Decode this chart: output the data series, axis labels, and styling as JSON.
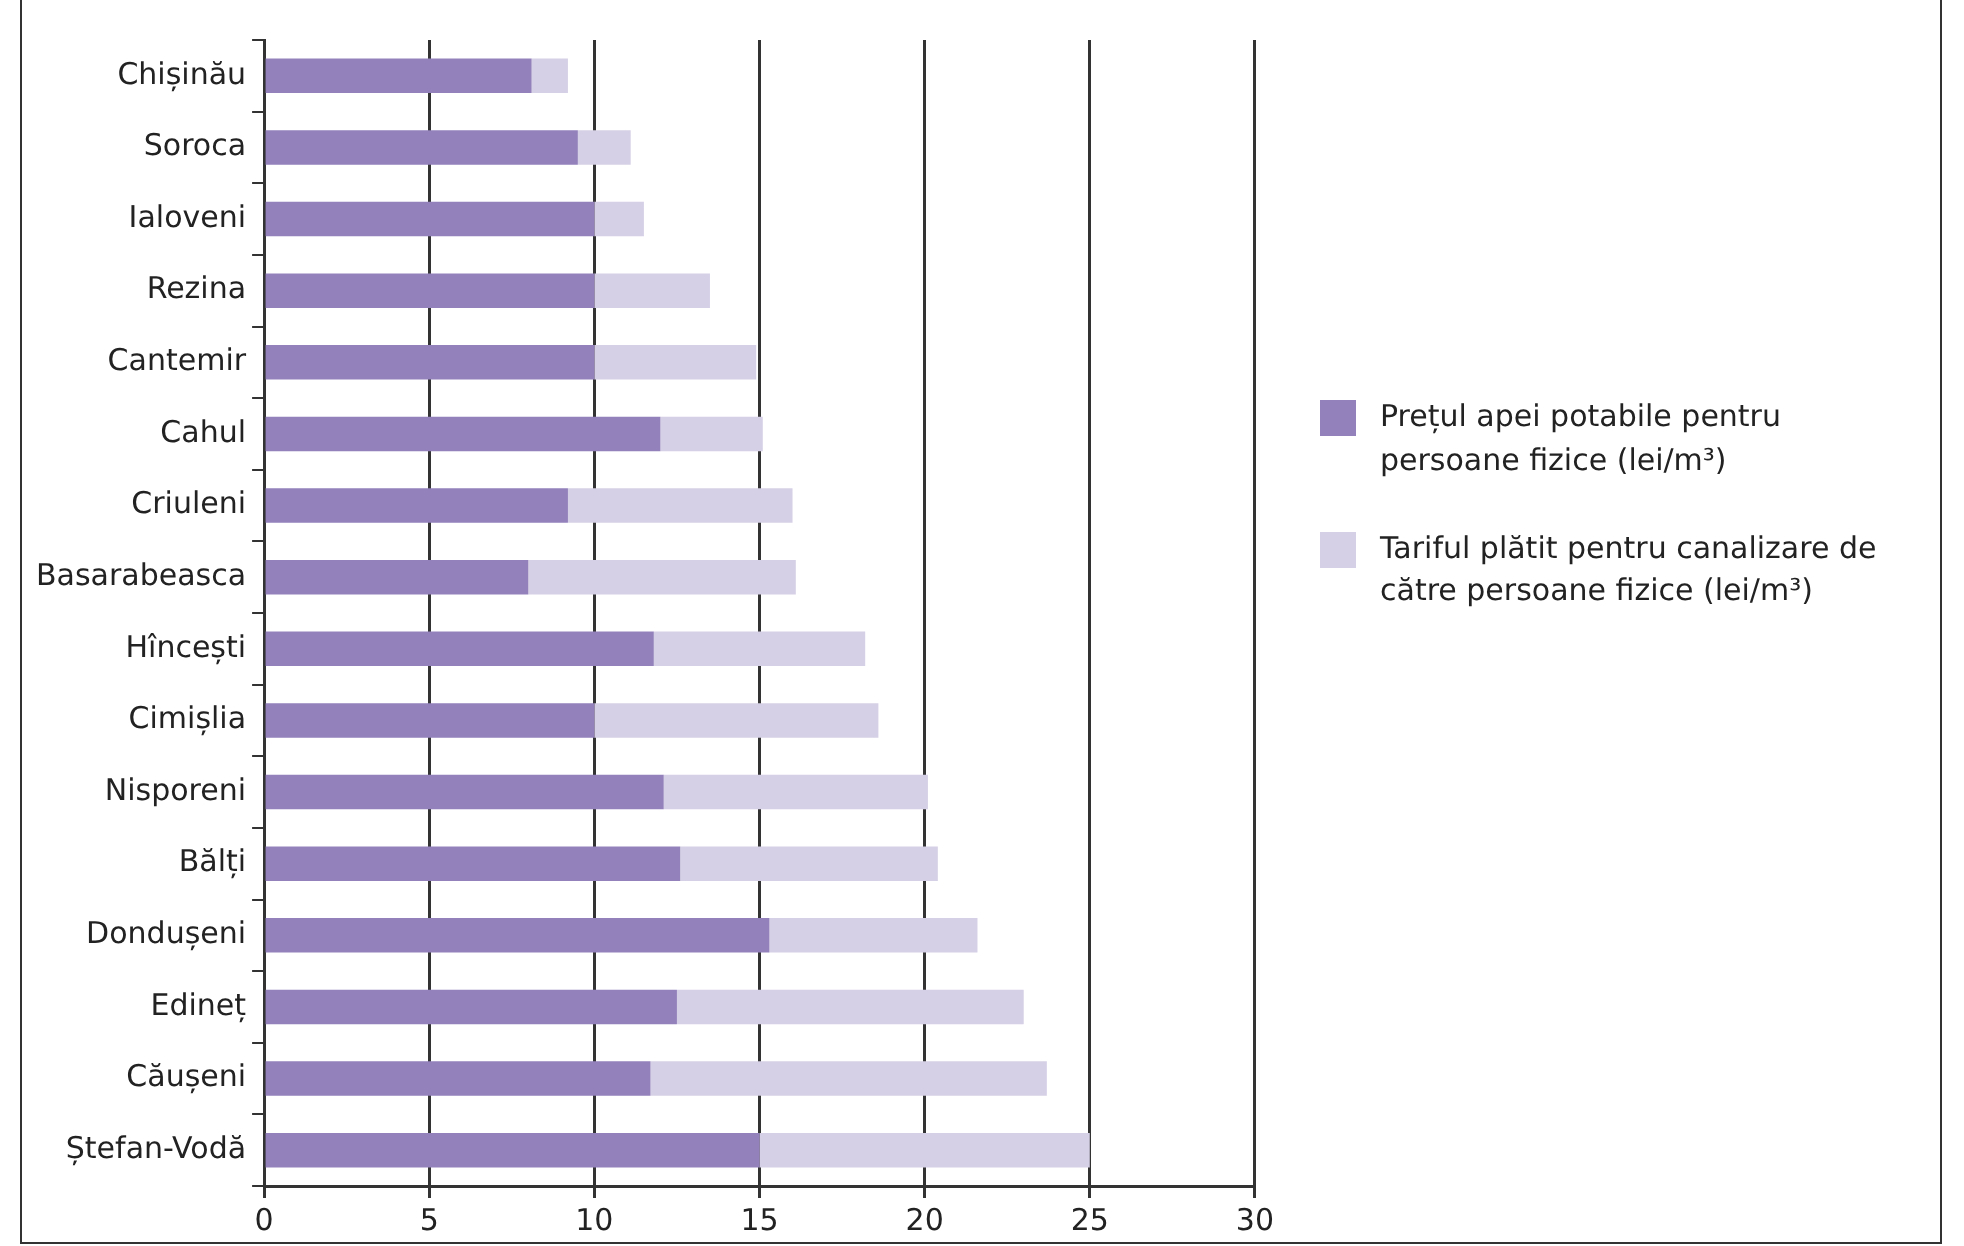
{
  "chart_data": {
    "type": "bar",
    "orientation": "horizontal",
    "stacked": true,
    "categories": [
      "Chișinău",
      "Soroca",
      "Ialoveni",
      "Rezina",
      "Cantemir",
      "Cahul",
      "Criuleni",
      "Basarabeasca",
      "Hîncești",
      "Cimișlia",
      "Nisporeni",
      "Bălți",
      "Dondușeni",
      "Edineț",
      "Căușeni",
      "Ștefan-Vodă"
    ],
    "series": [
      {
        "name": "Prețul apei potabile pentru persoane fizice (lei/m³)",
        "color": "#9381bb",
        "values": [
          8.1,
          9.5,
          10,
          10,
          10,
          12,
          9.2,
          8,
          11.8,
          10,
          12.1,
          12.6,
          15.3,
          12.5,
          11.7,
          15
        ]
      },
      {
        "name": "Tariful plătit pentru canalizare de către persoane fizice (lei/m³)",
        "color": "#d6d0e6",
        "values": [
          1.1,
          1.6,
          1.5,
          3.5,
          4.9,
          3.1,
          6.8,
          8.1,
          6.4,
          8.6,
          8,
          7.8,
          6.3,
          10.5,
          12,
          10
        ]
      }
    ],
    "xlim": [
      0,
      30
    ],
    "xticks": [
      0,
      5,
      10,
      15,
      20,
      25,
      30
    ],
    "grid": "x",
    "legend": "right"
  }
}
